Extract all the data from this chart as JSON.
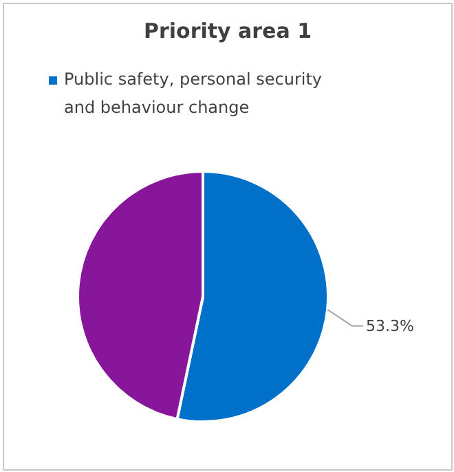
{
  "chart_data": {
    "type": "pie",
    "title": "Priority area 1",
    "categories": [
      "Public safety, personal security and behaviour change",
      null
    ],
    "values": [
      53.3,
      46.7
    ],
    "colors": [
      "#0070c8",
      "#87169a"
    ],
    "value_labels": [
      "53.3%",
      null
    ],
    "legend": "top"
  }
}
